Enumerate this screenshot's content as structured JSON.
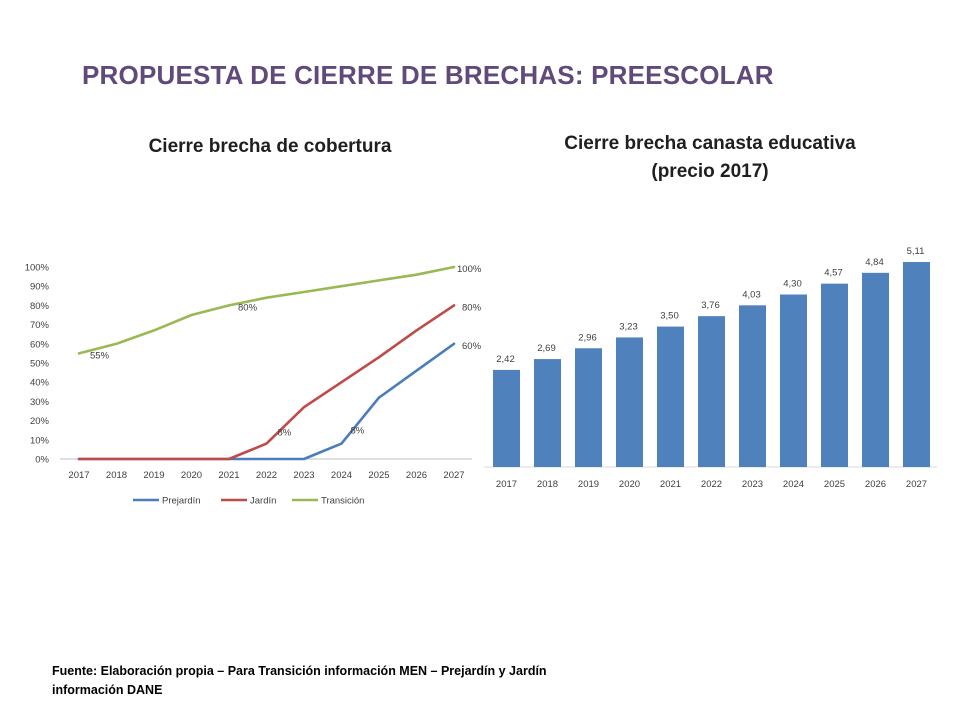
{
  "page": {
    "title": "PROPUESTA DE CIERRE DE BRECHAS: PREESCOLAR",
    "source_note": "Fuente: Elaboración propia – Para Transición información MEN – Prejardín y Jardín información DANE"
  },
  "chart_data": [
    {
      "type": "line",
      "title": "Cierre brecha de cobertura",
      "x": [
        "2017",
        "2018",
        "2019",
        "2020",
        "2021",
        "2022",
        "2023",
        "2024",
        "2025",
        "2026",
        "2027"
      ],
      "y_ticks": [
        "0%",
        "10%",
        "20%",
        "30%",
        "40%",
        "50%",
        "60%",
        "70%",
        "80%",
        "90%",
        "100%"
      ],
      "ylim": [
        0,
        100
      ],
      "legend_position": "bottom",
      "series": [
        {
          "name": "Prejardín",
          "color": "#4a7ebb",
          "values": [
            0,
            0,
            0,
            0,
            0,
            0,
            0,
            8,
            32,
            46,
            60
          ],
          "labels": [
            {
              "index": 7,
              "text": "8%"
            },
            {
              "index": 10,
              "text": "60%"
            }
          ]
        },
        {
          "name": "Jardín",
          "color": "#be4b48",
          "values": [
            0,
            0,
            0,
            0,
            0,
            8,
            27,
            40,
            53,
            67,
            80
          ],
          "labels": [
            {
              "index": 5,
              "text": "8%"
            },
            {
              "index": 10,
              "text": "80%"
            }
          ]
        },
        {
          "name": "Transición",
          "color": "#98b954",
          "values": [
            55,
            60,
            67,
            75,
            80,
            84,
            87,
            90,
            93,
            96,
            100
          ],
          "labels": [
            {
              "index": 0,
              "text": "55%"
            },
            {
              "index": 4,
              "text": "80%"
            },
            {
              "index": 10,
              "text": "100%"
            }
          ]
        }
      ]
    },
    {
      "type": "bar",
      "title": "Cierre brecha canasta educativa (precio 2017)",
      "title_lines": [
        "Cierre brecha canasta educativa",
        "(precio 2017)"
      ],
      "categories": [
        "2017",
        "2018",
        "2019",
        "2020",
        "2021",
        "2022",
        "2023",
        "2024",
        "2025",
        "2026",
        "2027"
      ],
      "values": [
        2.42,
        2.69,
        2.96,
        3.23,
        3.5,
        3.76,
        4.03,
        4.3,
        4.57,
        4.84,
        5.11
      ],
      "value_labels": [
        "2,42",
        "2,69",
        "2,96",
        "3,23",
        "3,50",
        "3,76",
        "4,03",
        "4,30",
        "4,57",
        "4,84",
        "5,11"
      ],
      "color": "#4f81bd",
      "ylim": [
        0,
        5.11
      ]
    }
  ]
}
